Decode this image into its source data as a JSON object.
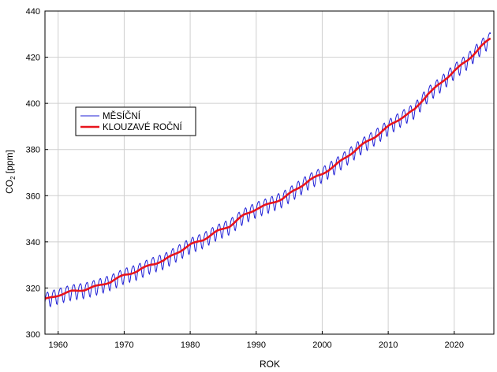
{
  "chart_data": {
    "type": "line",
    "xlabel": "ROK",
    "ylabel": {
      "main": "CO",
      "sub": "2",
      "unit": " [ppm]"
    },
    "xlim": [
      1958,
      2026
    ],
    "ylim": [
      300,
      440
    ],
    "x_ticks": [
      1960,
      1970,
      1980,
      1990,
      2000,
      2010,
      2020
    ],
    "y_ticks": [
      300,
      320,
      340,
      360,
      380,
      400,
      420,
      440
    ],
    "grid": true,
    "legend_position": "upper-left",
    "seasonal_amplitude_ppm": 3.3,
    "series": [
      {
        "name": "MĚSÍČNÍ",
        "color": "#1f1fd6",
        "style": "thin-line",
        "monthly": true
      },
      {
        "name": "KLOUZAVÉ ROČNÍ",
        "color": "#e8141c",
        "style": "thick-line",
        "trend": [
          [
            1958,
            315.0
          ],
          [
            1960,
            316.9
          ],
          [
            1962,
            318.5
          ],
          [
            1964,
            319.3
          ],
          [
            1966,
            320.9
          ],
          [
            1968,
            322.8
          ],
          [
            1970,
            325.6
          ],
          [
            1972,
            327.3
          ],
          [
            1974,
            330.1
          ],
          [
            1976,
            331.9
          ],
          [
            1978,
            335.3
          ],
          [
            1980,
            338.7
          ],
          [
            1982,
            341.0
          ],
          [
            1984,
            344.4
          ],
          [
            1986,
            346.9
          ],
          [
            1988,
            351.3
          ],
          [
            1990,
            354.3
          ],
          [
            1992,
            356.4
          ],
          [
            1994,
            358.8
          ],
          [
            1996,
            362.6
          ],
          [
            1998,
            366.6
          ],
          [
            2000,
            369.4
          ],
          [
            2002,
            373.2
          ],
          [
            2004,
            377.5
          ],
          [
            2006,
            381.9
          ],
          [
            2008,
            385.6
          ],
          [
            2010,
            389.9
          ],
          [
            2012,
            393.8
          ],
          [
            2014,
            397.2
          ],
          [
            2016,
            404.2
          ],
          [
            2018,
            408.7
          ],
          [
            2020,
            414.2
          ],
          [
            2022,
            418.5
          ],
          [
            2024,
            424.6
          ],
          [
            2025.5,
            428.0
          ]
        ]
      }
    ]
  }
}
